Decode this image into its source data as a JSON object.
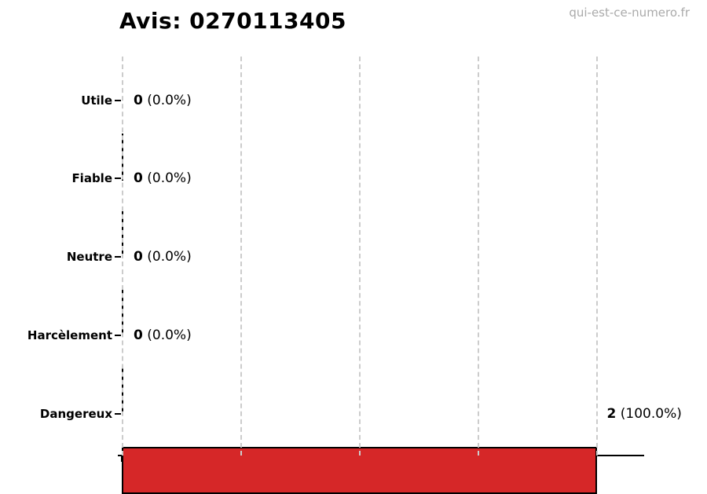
{
  "page": {
    "title": "Avis: 0270113405",
    "watermark": "qui-est-ce-numero.fr"
  },
  "chart_data": {
    "type": "bar",
    "orientation": "horizontal",
    "title": "Avis: 0270113405",
    "watermark": "qui-est-ce-numero.fr",
    "categories": [
      "Utile",
      "Fiable",
      "Neutre",
      "Harcèlement",
      "Dangereux"
    ],
    "values": [
      0,
      0,
      0,
      0,
      2
    ],
    "value_labels": [
      {
        "count": "0",
        "pct": "(0.0%)"
      },
      {
        "count": "0",
        "pct": "(0.0%)"
      },
      {
        "count": "0",
        "pct": "(0.0%)"
      },
      {
        "count": "0",
        "pct": "(0.0%)"
      },
      {
        "count": "2",
        "pct": "(100.0%)"
      }
    ],
    "xlim": [
      0,
      2.2
    ],
    "x_gridlines": [
      0,
      0.5,
      1.0,
      1.5,
      2.0
    ],
    "grid_style": "dashed",
    "legend": "none",
    "xlabel": "",
    "ylabel": "",
    "bar_color": "#d62728",
    "bar_edge_color": "#000000",
    "grid_color": "#cccccc",
    "watermark_color": "#aaaaaa"
  }
}
